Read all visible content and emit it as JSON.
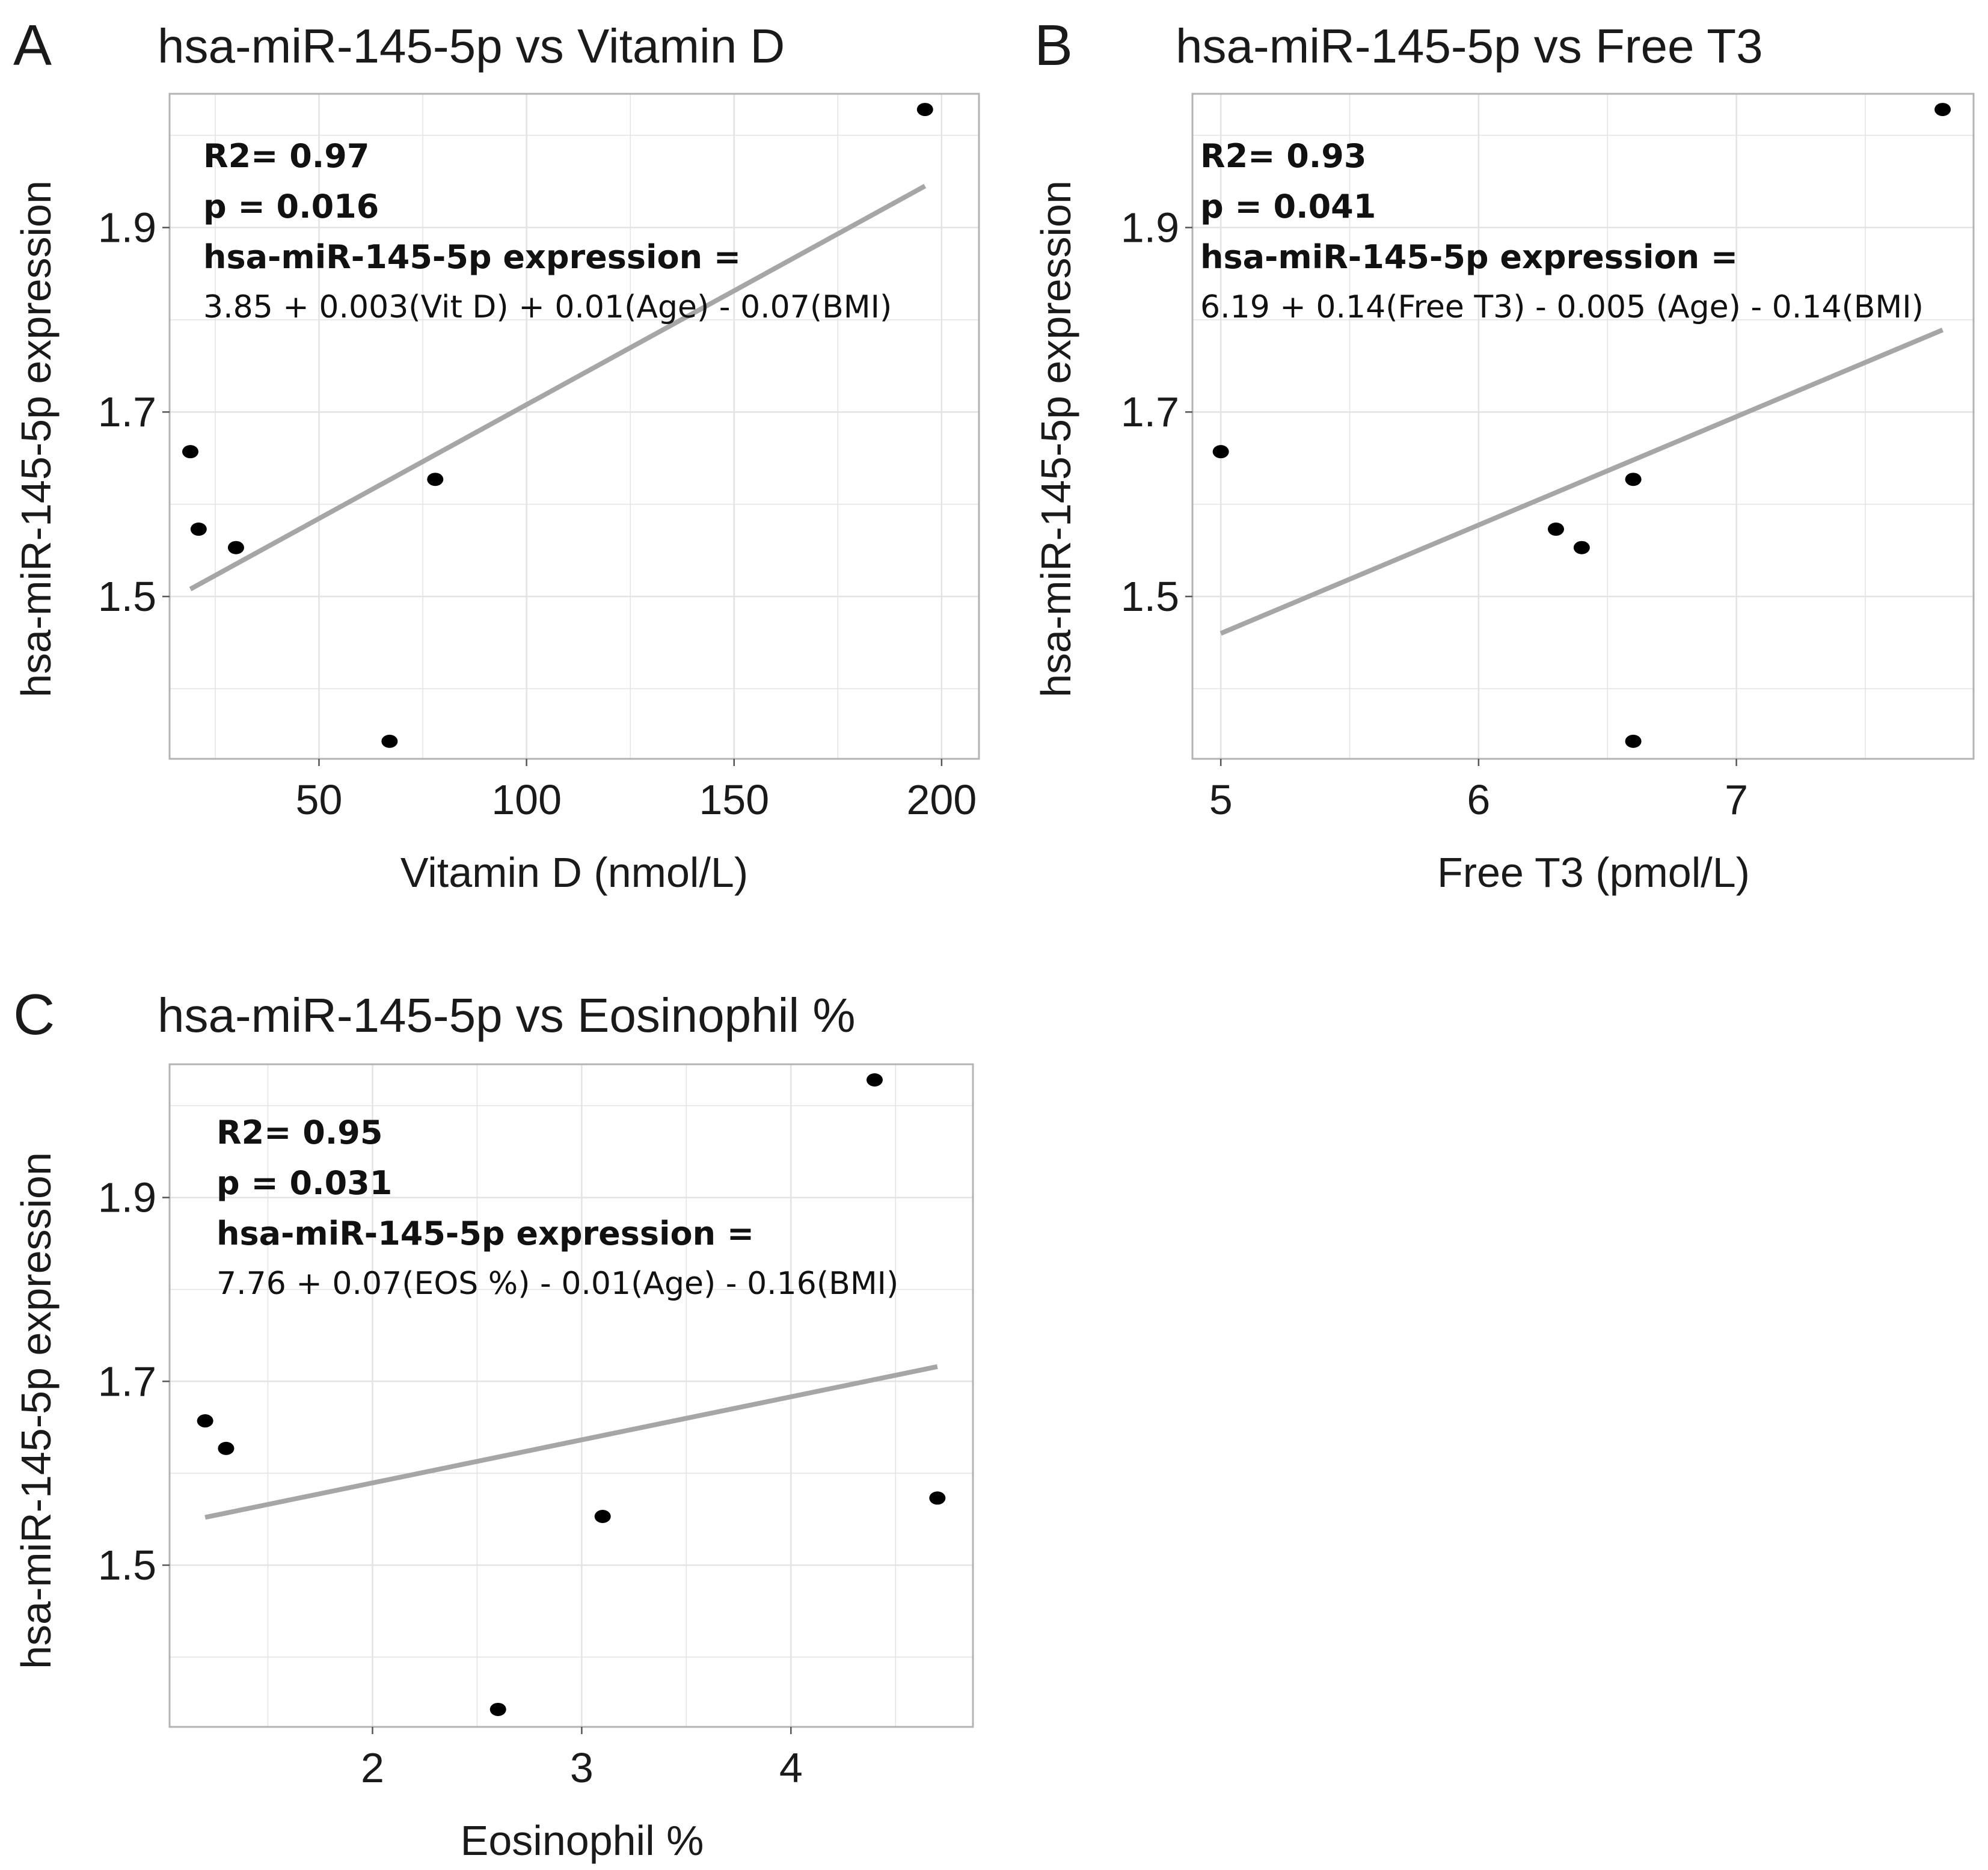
{
  "figure": {
    "y_axis_label": "hsa-miR-145-5p expression"
  },
  "style": {
    "point_color": "#000000",
    "fit_line_color": "#a6a6a6",
    "grid_color": "#e3e3e3",
    "frame_color": "#b3b3b3",
    "text_color": "#1a1a1a"
  },
  "chart_data": [
    {
      "panel": "A",
      "type": "scatter",
      "title": "hsa-miR-145-5p vs Vitamin D",
      "xlabel": "Vitamin D (nmol/L)",
      "ylabel": "hsa-miR-145-5p expression",
      "xlim": [
        14,
        209
      ],
      "ylim": [
        1.324,
        2.045
      ],
      "xticks": [
        50,
        100,
        150,
        200
      ],
      "xtick_labels": [
        "50",
        "100",
        "150",
        "200"
      ],
      "xminor": [
        25,
        75,
        125,
        175
      ],
      "yticks": [
        1.5,
        1.7,
        1.9
      ],
      "ytick_labels": [
        "1.5",
        "1.7",
        "1.9"
      ],
      "yminor": [
        1.4,
        1.6,
        1.8,
        2.0
      ],
      "grid": true,
      "points": [
        [
          19,
          1.657
        ],
        [
          21,
          1.573
        ],
        [
          30,
          1.553
        ],
        [
          67,
          1.343
        ],
        [
          78,
          1.627
        ],
        [
          196,
          2.028
        ]
      ],
      "fit_line": [
        [
          19,
          1.508
        ],
        [
          196,
          1.945
        ]
      ],
      "annotations": {
        "r2": "R2= 0.97",
        "p": "p = 0.016",
        "eq_label": "hsa-miR-145-5p expression =",
        "equation": "3.85 + 0.003(Vit D) + 0.01(Age) - 0.07(BMI)"
      }
    },
    {
      "panel": "B",
      "type": "scatter",
      "title": "hsa-miR-145-5p vs Free T3",
      "xlabel": "Free T3 (pmol/L)",
      "ylabel": "hsa-miR-145-5p expression",
      "xlim": [
        4.89,
        7.92
      ],
      "ylim": [
        1.324,
        2.045
      ],
      "xticks": [
        5,
        6,
        7
      ],
      "xtick_labels": [
        "5",
        "6",
        "7"
      ],
      "xminor": [
        5.5,
        6.5,
        7.5
      ],
      "yticks": [
        1.5,
        1.7,
        1.9
      ],
      "ytick_labels": [
        "1.5",
        "1.7",
        "1.9"
      ],
      "yminor": [
        1.4,
        1.6,
        1.8,
        2.0
      ],
      "grid": true,
      "points": [
        [
          5.0,
          1.657
        ],
        [
          6.3,
          1.573
        ],
        [
          6.4,
          1.553
        ],
        [
          6.6,
          1.627
        ],
        [
          6.6,
          1.343
        ],
        [
          7.8,
          2.028
        ]
      ],
      "fit_line": [
        [
          5.0,
          1.46
        ],
        [
          7.8,
          1.789
        ]
      ],
      "annotations": {
        "r2": "R2= 0.93",
        "p": "p = 0.041",
        "eq_label": "hsa-miR-145-5p expression =",
        "equation": "6.19 + 0.14(Free T3) - 0.005 (Age) - 0.14(BMI)"
      }
    },
    {
      "panel": "C",
      "type": "scatter",
      "title": "hsa-miR-145-5p vs Eosinophil %",
      "xlabel": "Eosinophil %",
      "ylabel": "hsa-miR-145-5p expression",
      "xlim": [
        1.03,
        4.87
      ],
      "ylim": [
        1.324,
        2.045
      ],
      "xticks": [
        2,
        3,
        4
      ],
      "xtick_labels": [
        "2",
        "3",
        "4"
      ],
      "xminor": [
        1.5,
        2.5,
        3.5,
        4.5
      ],
      "yticks": [
        1.5,
        1.7,
        1.9
      ],
      "ytick_labels": [
        "1.5",
        "1.7",
        "1.9"
      ],
      "yminor": [
        1.4,
        1.6,
        1.8,
        2.0
      ],
      "grid": true,
      "points": [
        [
          1.2,
          1.657
        ],
        [
          1.3,
          1.627
        ],
        [
          2.6,
          1.343
        ],
        [
          3.1,
          1.553
        ],
        [
          4.4,
          2.028
        ],
        [
          4.7,
          1.573
        ]
      ],
      "fit_line": [
        [
          1.2,
          1.552
        ],
        [
          4.7,
          1.716
        ]
      ],
      "annotations": {
        "r2": "R2= 0.95",
        "p": "p = 0.031",
        "eq_label": "hsa-miR-145-5p expression =",
        "equation": "7.76 + 0.07(EOS %) - 0.01(Age) - 0.16(BMI)"
      }
    }
  ]
}
